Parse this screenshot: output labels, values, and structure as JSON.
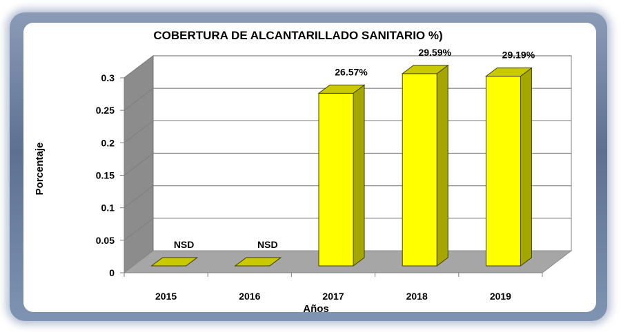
{
  "chart_data": {
    "type": "bar",
    "title": "COBERTURA DE ALCANTARILLADO SANITARIO %)",
    "xlabel": "Años",
    "ylabel": "Porcentaje",
    "categories": [
      "2015",
      "2016",
      "2017",
      "2018",
      "2019"
    ],
    "values": [
      0,
      0,
      0.2657,
      0.2959,
      0.2919
    ],
    "data_labels": [
      "NSD",
      "NSD",
      "26.57%",
      "29.59%",
      "29.19%"
    ],
    "ylim": [
      0,
      0.3
    ],
    "yticks": [
      "0",
      "0.05",
      "0.1",
      "0.15",
      "0.2",
      "0.25",
      "0.3"
    ],
    "grid": true,
    "style": "3d-column",
    "colors": {
      "bar_front": "#ffff00",
      "bar_side": "#a6a600",
      "bar_top": "#c9c900",
      "back_wall": "#ffffff",
      "side_wall": "#8c8c8c",
      "floor": "#a6a6a6",
      "frame": "#6a7c9c"
    }
  }
}
